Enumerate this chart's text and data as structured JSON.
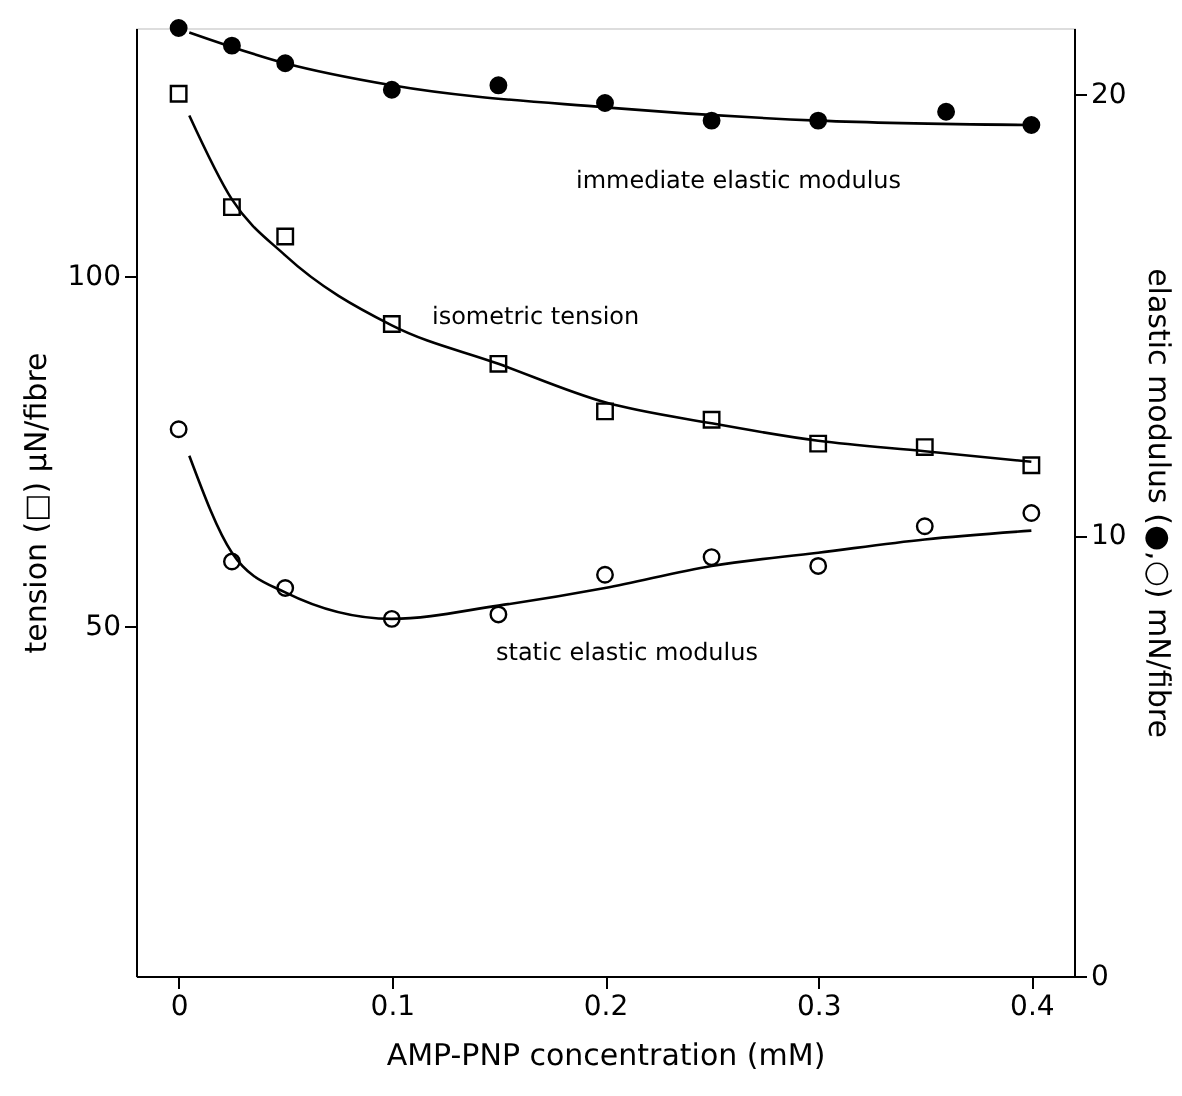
{
  "chart_data": {
    "type": "scatter",
    "xlabel": "AMP-PNP concentration (mM)",
    "ylabel": "tension (□) μN/fibre",
    "y2label": "elastic modulus (●,○) mN/fibre",
    "xlim": [
      -0.02,
      0.42
    ],
    "xticks": [
      0,
      0.1,
      0.2,
      0.3,
      0.4
    ],
    "ylim": [
      0,
      135.5
    ],
    "yticks": [
      50,
      100
    ],
    "y2lim": [
      0,
      21.5
    ],
    "y2ticks": [
      0,
      10,
      20
    ],
    "grid": false,
    "series": [
      {
        "type": "scatter",
        "axis": "y2",
        "marker": "circle",
        "color": "#000000",
        "x": [
          0,
          0.025,
          0.05,
          0.1,
          0.15,
          0.2,
          0.25,
          0.3,
          0.36,
          0.4
        ],
        "values": [
          21.5,
          21.1,
          20.7,
          20.1,
          20.2,
          19.8,
          19.4,
          19.4,
          19.6,
          19.3
        ]
      },
      {
        "type": "scatter",
        "marker": "square",
        "color": "#000000",
        "x": [
          0,
          0.025,
          0.05,
          0.1,
          0.15,
          0.2,
          0.25,
          0.3,
          0.35,
          0.4
        ],
        "values": [
          126.1,
          109.9,
          105.7,
          93.2,
          87.5,
          80.7,
          79.5,
          76.1,
          75.6,
          73.0
        ]
      },
      {
        "type": "scatter",
        "axis": "y2",
        "marker": "circle",
        "color": "#000000",
        "x": [
          0,
          0.025,
          0.05,
          0.1,
          0.15,
          0.2,
          0.25,
          0.3,
          0.35,
          0.4
        ],
        "values": [
          12.4,
          9.4,
          8.8,
          8.1,
          8.2,
          9.1,
          9.5,
          9.3,
          10.2,
          10.5
        ]
      },
      {
        "type": "line",
        "axis": "y2",
        "line_style": "solid",
        "color": "#000000",
        "x": [
          0.005,
          0.05,
          0.1,
          0.2,
          0.3,
          0.4
        ],
        "values": [
          21.4,
          20.7,
          20.2,
          19.7,
          19.4,
          19.3
        ]
      },
      {
        "type": "line",
        "line_style": "solid",
        "color": "#000000",
        "x": [
          0.005,
          0.025,
          0.05,
          0.1,
          0.15,
          0.2,
          0.25,
          0.3,
          0.35,
          0.4
        ],
        "values": [
          123,
          111,
          103,
          93,
          87.5,
          82,
          79,
          76.5,
          75,
          73.5
        ]
      },
      {
        "type": "line",
        "axis": "y2",
        "line_style": "solid",
        "color": "#000000",
        "x": [
          0.005,
          0.025,
          0.05,
          0.1,
          0.15,
          0.2,
          0.25,
          0.3,
          0.35,
          0.4
        ],
        "values": [
          11.8,
          9.6,
          8.7,
          8.1,
          8.4,
          8.8,
          9.3,
          9.6,
          9.9,
          10.1
        ]
      }
    ],
    "annotations": [
      "immediate elastic modulus",
      "isometric tension",
      "static elastic modulus"
    ]
  }
}
